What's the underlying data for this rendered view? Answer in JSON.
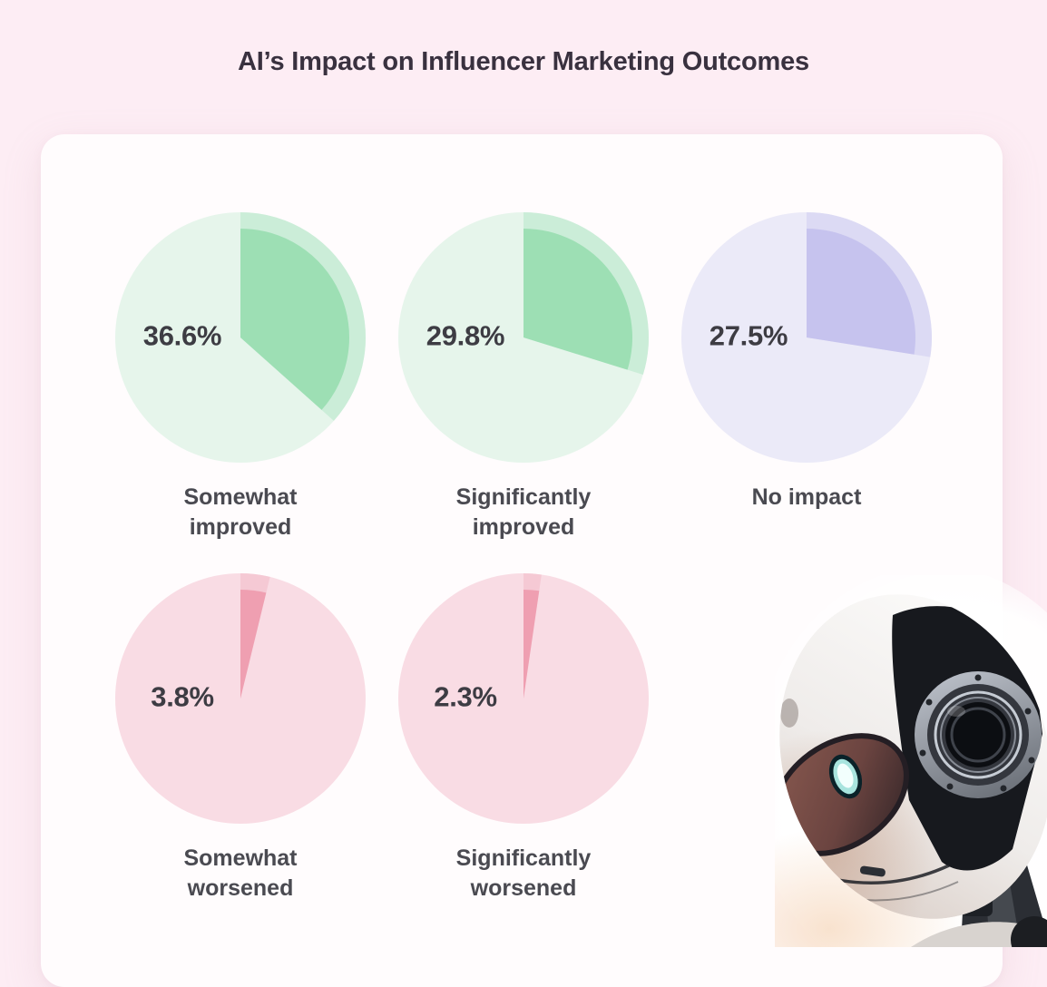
{
  "title": "AI’s Impact on Influencer Marketing Outcomes",
  "chart_data": {
    "type": "pie",
    "title": "AI’s Impact on Influencer Marketing Outcomes",
    "units": "%",
    "layout": "five mini donut-less pies; top row of 3, bottom row of 2; slice starts at 12 o'clock sweeping clockwise; percent label sits on left half of each circle; category label centered below",
    "legend_position": "none",
    "series": [
      {
        "label": "Somewhat improved",
        "label_lines": [
          "Somewhat",
          "improved"
        ],
        "value": 36.6,
        "value_label": "36.6%",
        "theme": "green"
      },
      {
        "label": "Significantly improved",
        "label_lines": [
          "Significantly",
          "improved"
        ],
        "value": 29.8,
        "value_label": "29.8%",
        "theme": "green"
      },
      {
        "label": "No impact",
        "label_lines": [
          "No impact"
        ],
        "value": 27.5,
        "value_label": "27.5%",
        "theme": "purple"
      },
      {
        "label": "Somewhat worsened",
        "label_lines": [
          "Somewhat",
          "worsened"
        ],
        "value": 3.8,
        "value_label": "3.8%",
        "theme": "pink"
      },
      {
        "label": "Significantly worsened",
        "label_lines": [
          "Significantly",
          "worsened"
        ],
        "value": 2.3,
        "value_label": "2.3%",
        "theme": "pink"
      }
    ],
    "themes": {
      "green": {
        "base": "#e6f5eb",
        "halo": "#cbedd8",
        "slice": "#9ddfb4"
      },
      "purple": {
        "base": "#ebeaf8",
        "halo": "#dcdaf4",
        "slice": "#c6c3ee"
      },
      "pink": {
        "base": "#f9dce4",
        "halo": "#f5c9d4",
        "slice": "#ef9fb1"
      }
    }
  },
  "colors": {
    "page_background": "#fdedf4",
    "card_background": "#fffcfd",
    "title_text": "#39313f",
    "percent_text": "#3d3c43",
    "label_text": "#4a4a51"
  },
  "decor": {
    "robot_alt": "white robot head photo, glowing teal eye, large camera-lens ear, dark mechanical neck, bottom-right corner"
  }
}
